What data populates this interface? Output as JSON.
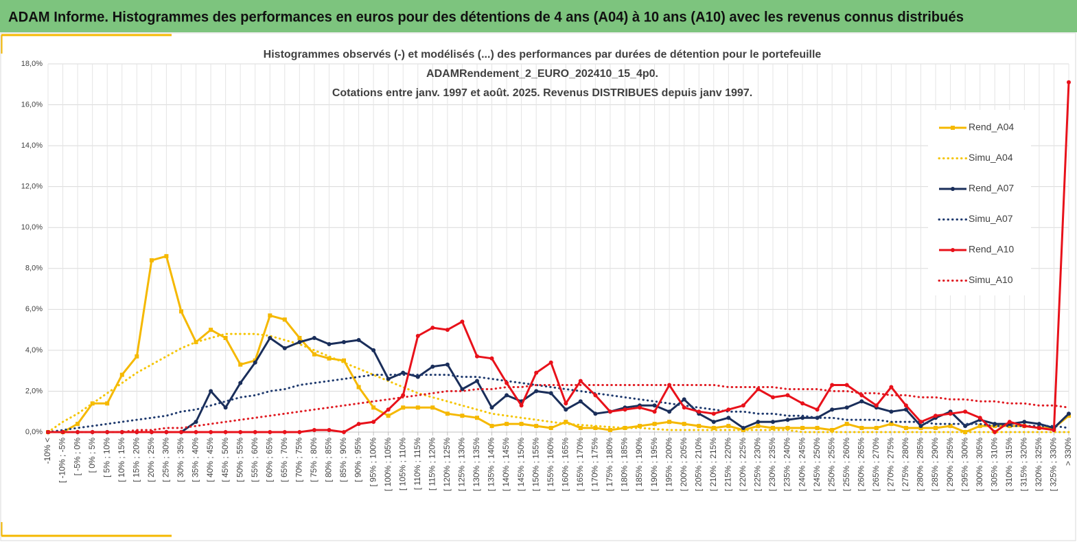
{
  "header": {
    "title": "ADAM Informe. Histogrammes des performances en euros pour des détentions de 4 ans (A04) à 10 ans (A10) avec les revenus connus distribués"
  },
  "chart_data": {
    "type": "line",
    "title": [
      "Histogrammes observés (-) et modélisés (...) des performances par durées de détention pour le portefeuille",
      "ADAMRendement_2_EURO_202410_15_4p0.",
      "Cotations entre janv. 1997 et août. 2025. Revenus DISTRIBUES depuis janv 1997."
    ],
    "categories": [
      "-10% <",
      "[ -10% ; -5%",
      "[ -5% ; 0%",
      "[ 0% ; 5%",
      "[ 5% ; 10%",
      "[ 10% ; 15%",
      "[ 15% ; 20%",
      "[ 20% ; 25%",
      "[ 25% ; 30%",
      "[ 30% ; 35%",
      "[ 35% ; 40%",
      "[ 40% ; 45%",
      "[ 45% ; 50%",
      "[ 50% ; 55%",
      "[ 55% ; 60%",
      "[ 60% ; 65%",
      "[ 65% ; 70%",
      "[ 70% ; 75%",
      "[ 75% ; 80%",
      "[ 80% ; 85%",
      "[ 85% ; 90%",
      "[ 90% ; 95%",
      "[ 95% ; 100%",
      "[ 100% ; 105%",
      "[ 105% ; 110%",
      "[ 110% ; 115%",
      "[ 115% ; 120%",
      "[ 120% ; 125%",
      "[ 125% ; 130%",
      "[ 130% ; 135%",
      "[ 135% ; 140%",
      "[ 140% ; 145%",
      "[ 145% ; 150%",
      "[ 150% ; 155%",
      "[ 155% ; 160%",
      "[ 160% ; 165%",
      "[ 165% ; 170%",
      "[ 170% ; 175%",
      "[ 175% ; 180%",
      "[ 180% ; 185%",
      "[ 185% ; 190%",
      "[ 190% ; 195%",
      "[ 195% ; 200%",
      "[ 200% ; 205%",
      "[ 205% ; 210%",
      "[ 210% ; 215%",
      "[ 215% ; 220%",
      "[ 220% ; 225%",
      "[ 225% ; 230%",
      "[ 230% ; 235%",
      "[ 235% ; 240%",
      "[ 240% ; 245%",
      "[ 245% ; 250%",
      "[ 250% ; 255%",
      "[ 255% ; 260%",
      "[ 260% ; 265%",
      "[ 265% ; 270%",
      "[ 270% ; 275%",
      "[ 275% ; 280%",
      "[ 280% ; 285%",
      "[ 285% ; 290%",
      "[ 290% ; 295%",
      "[ 295% ; 300%",
      "[ 300% ; 305%",
      "[ 305% ; 310%",
      "[ 310% ; 315%",
      "[ 315% ; 320%",
      "[ 320% ; 325%",
      "[ 325% ; 330%",
      "> 330%"
    ],
    "ylim": [
      0,
      18
    ],
    "yticks": [
      {
        "value": 0,
        "label": "0,0%"
      },
      {
        "value": 2,
        "label": "2,0%"
      },
      {
        "value": 4,
        "label": "4,0%"
      },
      {
        "value": 6,
        "label": "6,0%"
      },
      {
        "value": 8,
        "label": "8,0%"
      },
      {
        "value": 10,
        "label": "10,0%"
      },
      {
        "value": 12,
        "label": "12,0%"
      },
      {
        "value": 14,
        "label": "14,0%"
      },
      {
        "value": 16,
        "label": "16,0%"
      },
      {
        "value": 18,
        "label": "18,0%"
      }
    ],
    "grid": true,
    "legend": "right",
    "series": [
      {
        "name": "Rend_A04",
        "color": "#f5b800",
        "marker": "square",
        "dotted": false,
        "values": [
          0,
          0,
          0.4,
          1.4,
          1.4,
          2.8,
          3.7,
          8.4,
          8.6,
          5.9,
          4.4,
          5.0,
          4.6,
          3.3,
          3.5,
          5.7,
          5.5,
          4.6,
          3.8,
          3.6,
          3.5,
          2.2,
          1.2,
          0.8,
          1.2,
          1.2,
          1.2,
          0.9,
          0.8,
          0.7,
          0.3,
          0.4,
          0.4,
          0.3,
          0.2,
          0.5,
          0.2,
          0.2,
          0.1,
          0.2,
          0.3,
          0.4,
          0.5,
          0.4,
          0.3,
          0.2,
          0.3,
          0.1,
          0.3,
          0.2,
          0.2,
          0.2,
          0.2,
          0.1,
          0.4,
          0.2,
          0.2,
          0.4,
          0.2,
          0.2,
          0.2,
          0.3,
          0.0,
          0.3,
          0.3,
          0.3,
          0.3,
          0.2,
          0.2,
          0.8
        ]
      },
      {
        "name": "Simu_A04",
        "color": "#f5c400",
        "marker": "none",
        "dotted": true,
        "values": [
          0.0,
          0.5,
          0.9,
          1.4,
          1.9,
          2.4,
          2.9,
          3.3,
          3.7,
          4.1,
          4.4,
          4.6,
          4.8,
          4.8,
          4.8,
          4.7,
          4.5,
          4.3,
          4.0,
          3.7,
          3.4,
          3.1,
          2.8,
          2.5,
          2.2,
          1.9,
          1.7,
          1.5,
          1.3,
          1.1,
          0.9,
          0.8,
          0.7,
          0.6,
          0.5,
          0.4,
          0.35,
          0.3,
          0.25,
          0.2,
          0.2,
          0.15,
          0.1,
          0.1,
          0.1,
          0.1,
          0.1,
          0.1,
          0.1,
          0.1,
          0.1,
          0.0,
          0.0,
          0.0,
          0.0,
          0.0,
          0.0,
          0.0,
          0.0,
          0.0,
          0.0,
          0.0,
          0.0,
          0.0,
          0.0,
          0.0,
          0.0,
          0.0,
          0.0,
          0.0
        ]
      },
      {
        "name": "Rend_A07",
        "color": "#1a2e5a",
        "marker": "circle",
        "dotted": false,
        "values": [
          0,
          0,
          0,
          0,
          0,
          0,
          0,
          0,
          0,
          0,
          0.5,
          2.0,
          1.2,
          2.4,
          3.4,
          4.6,
          4.1,
          4.4,
          4.6,
          4.3,
          4.4,
          4.5,
          4.0,
          2.6,
          2.9,
          2.7,
          3.2,
          3.3,
          2.1,
          2.5,
          1.2,
          1.8,
          1.5,
          2.0,
          1.9,
          1.1,
          1.5,
          0.9,
          1.0,
          1.2,
          1.3,
          1.3,
          1.0,
          1.6,
          0.9,
          0.5,
          0.7,
          0.2,
          0.5,
          0.5,
          0.6,
          0.7,
          0.7,
          1.1,
          1.2,
          1.5,
          1.2,
          1.0,
          1.1,
          0.3,
          0.7,
          1.0,
          0.3,
          0.6,
          0.4,
          0.4,
          0.5,
          0.4,
          0.2,
          0.9
        ]
      },
      {
        "name": "Simu_A07",
        "color": "#1f3a6e",
        "marker": "none",
        "dotted": true,
        "values": [
          0.0,
          0.1,
          0.2,
          0.3,
          0.4,
          0.5,
          0.6,
          0.7,
          0.8,
          1.0,
          1.1,
          1.3,
          1.5,
          1.7,
          1.8,
          2.0,
          2.1,
          2.3,
          2.4,
          2.5,
          2.6,
          2.7,
          2.8,
          2.8,
          2.8,
          2.8,
          2.8,
          2.8,
          2.7,
          2.7,
          2.6,
          2.5,
          2.4,
          2.3,
          2.2,
          2.1,
          2.0,
          1.9,
          1.8,
          1.7,
          1.6,
          1.5,
          1.4,
          1.3,
          1.2,
          1.1,
          1.0,
          1.0,
          0.9,
          0.9,
          0.8,
          0.8,
          0.7,
          0.7,
          0.6,
          0.6,
          0.6,
          0.5,
          0.5,
          0.5,
          0.4,
          0.4,
          0.4,
          0.4,
          0.3,
          0.3,
          0.3,
          0.3,
          0.3,
          0.2
        ]
      },
      {
        "name": "Rend_A10",
        "color": "#e8111a",
        "marker": "circle",
        "dotted": false,
        "values": [
          0,
          0,
          0,
          0,
          0,
          0,
          0,
          0,
          0,
          0,
          0,
          0,
          0,
          0,
          0,
          0,
          0,
          0,
          0.1,
          0.1,
          0.0,
          0.4,
          0.5,
          1.1,
          1.8,
          4.7,
          5.1,
          5.0,
          5.4,
          3.7,
          3.6,
          2.4,
          1.3,
          2.9,
          3.4,
          1.4,
          2.5,
          1.8,
          1.0,
          1.1,
          1.2,
          1.0,
          2.3,
          1.2,
          1.0,
          0.9,
          1.1,
          1.3,
          2.1,
          1.7,
          1.8,
          1.4,
          1.1,
          2.3,
          2.3,
          1.8,
          1.3,
          2.2,
          1.3,
          0.5,
          0.8,
          0.9,
          1.0,
          0.7,
          0.0,
          0.5,
          0.3,
          0.2,
          0.1,
          17.1
        ]
      },
      {
        "name": "Simu_A10",
        "color": "#e01b22",
        "marker": "none",
        "dotted": true,
        "values": [
          0.0,
          0.0,
          0.0,
          0.0,
          0.0,
          0.0,
          0.1,
          0.1,
          0.2,
          0.2,
          0.3,
          0.4,
          0.5,
          0.6,
          0.7,
          0.8,
          0.9,
          1.0,
          1.1,
          1.2,
          1.3,
          1.4,
          1.5,
          1.6,
          1.7,
          1.8,
          1.9,
          2.0,
          2.0,
          2.1,
          2.1,
          2.2,
          2.2,
          2.3,
          2.3,
          2.3,
          2.3,
          2.3,
          2.3,
          2.3,
          2.3,
          2.3,
          2.3,
          2.3,
          2.3,
          2.3,
          2.2,
          2.2,
          2.2,
          2.2,
          2.1,
          2.1,
          2.1,
          2.0,
          2.0,
          1.9,
          1.9,
          1.8,
          1.8,
          1.7,
          1.7,
          1.6,
          1.6,
          1.5,
          1.5,
          1.4,
          1.4,
          1.3,
          1.3,
          1.2
        ]
      }
    ]
  }
}
